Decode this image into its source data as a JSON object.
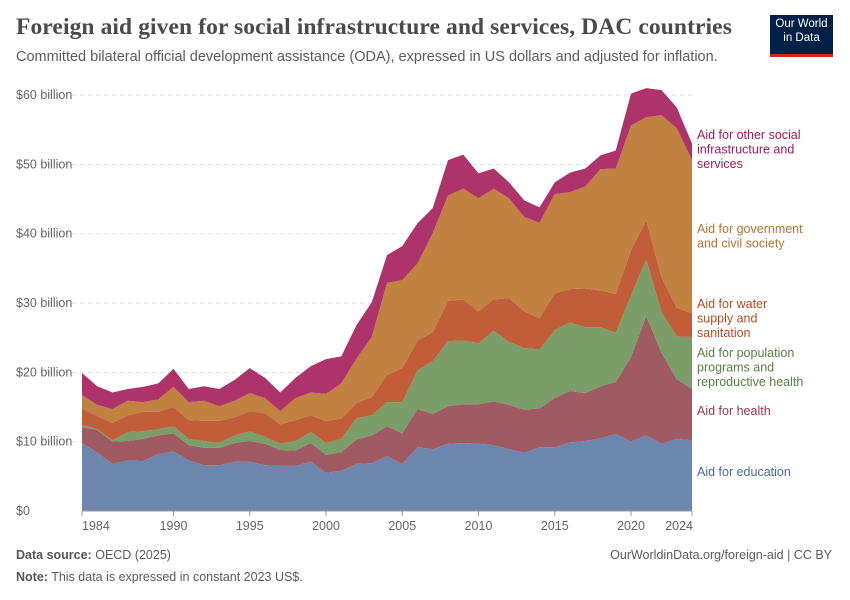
{
  "header": {
    "title": "Foreign aid given for social infrastructure and services, DAC countries",
    "subtitle": "Committed bilateral official development assistance (ODA), expressed in US dollars and adjusted for inflation.",
    "logo_line1": "Our World",
    "logo_line2": "in Data"
  },
  "footer": {
    "source_label": "Data source:",
    "source": "OECD (2025)",
    "note_label": "Note:",
    "note": "This data is expressed in constant 2023 US$.",
    "url": "OurWorldinData.org/foreign-aid | CC BY"
  },
  "chart_data": {
    "type": "area",
    "stacked": true,
    "title": "Foreign aid given for social infrastructure and services, DAC countries",
    "xlim": [
      1984,
      2024
    ],
    "ylim": [
      0,
      60
    ],
    "grid": "horizontal dashed",
    "legend": "right, labels at series end",
    "x_ticks": [
      "1984",
      "1990",
      "1995",
      "2000",
      "2005",
      "2010",
      "2015",
      "2020",
      "2024"
    ],
    "y_ticks": [
      "$0",
      "$10 billion",
      "$20 billion",
      "$30 billion",
      "$40 billion",
      "$50 billion",
      "$60 billion"
    ],
    "units": "billion constant 2023 US$",
    "x": [
      1984,
      1985,
      1986,
      1987,
      1988,
      1989,
      1990,
      1991,
      1992,
      1993,
      1994,
      1995,
      1996,
      1997,
      1998,
      1999,
      2000,
      2001,
      2002,
      2003,
      2004,
      2005,
      2006,
      2007,
      2008,
      2009,
      2010,
      2011,
      2012,
      2013,
      2014,
      2015,
      2016,
      2017,
      2018,
      2019,
      2020,
      2021,
      2022,
      2023,
      2024
    ],
    "series": [
      {
        "name": "Aid for education",
        "color": "#6d86ae",
        "label_color": "#4c6a9c",
        "values": [
          9.8,
          8.4,
          6.8,
          7.3,
          7.2,
          8.2,
          8.6,
          7.3,
          6.6,
          6.6,
          7.1,
          7.1,
          6.6,
          6.5,
          6.5,
          7.1,
          5.5,
          5.8,
          6.8,
          6.9,
          7.9,
          6.8,
          9.2,
          8.9,
          9.7,
          9.8,
          9.7,
          9.5,
          8.9,
          8.4,
          9.2,
          9.2,
          9.9,
          10.1,
          10.5,
          11.1,
          10.0,
          10.9,
          9.7,
          10.4,
          10.2
        ]
      },
      {
        "name": "Aid for health",
        "color": "#a05a62",
        "label_color": "#9a3a47",
        "values": [
          2.3,
          3.3,
          3.2,
          2.8,
          3.2,
          2.7,
          2.6,
          2.2,
          2.5,
          2.5,
          2.7,
          3.0,
          3.1,
          2.3,
          2.2,
          2.7,
          2.6,
          2.7,
          3.5,
          4.0,
          4.3,
          4.4,
          5.5,
          5.1,
          5.4,
          5.6,
          5.7,
          6.3,
          6.4,
          6.2,
          5.6,
          7.1,
          7.4,
          6.9,
          7.5,
          7.5,
          12.2,
          17.2,
          13.1,
          8.6,
          7.4
        ]
      },
      {
        "name": "Aid for population programs and reproductive health",
        "color": "#7a9d6a",
        "label_color": "#578145",
        "values": [
          0.3,
          0.1,
          0.2,
          1.3,
          1.1,
          0.9,
          1.0,
          0.9,
          1.0,
          0.7,
          1.1,
          1.4,
          1.0,
          0.9,
          1.4,
          1.6,
          1.7,
          1.9,
          3.1,
          2.9,
          3.5,
          4.5,
          5.6,
          7.6,
          9.4,
          9.2,
          8.8,
          10.2,
          9.1,
          8.9,
          8.5,
          9.8,
          9.9,
          9.5,
          8.5,
          7.1,
          8.9,
          8.2,
          5.9,
          6.2,
          7.5
        ]
      },
      {
        "name": "Aid for water supply and sanitation",
        "color": "#c15d39",
        "label_color": "#bb4a1e",
        "values": [
          2.4,
          1.9,
          2.5,
          2.4,
          2.8,
          2.5,
          2.8,
          2.7,
          2.9,
          3.2,
          2.6,
          2.9,
          3.4,
          2.8,
          3.0,
          2.4,
          3.2,
          2.9,
          2.2,
          2.6,
          3.9,
          4.9,
          4.3,
          4.2,
          5.8,
          5.9,
          4.6,
          4.5,
          6.3,
          5.3,
          4.5,
          5.3,
          4.8,
          5.6,
          5.3,
          5.6,
          6.5,
          5.6,
          5.0,
          4.1,
          3.4
        ]
      },
      {
        "name": "Aid for government and civil society",
        "color": "#c08141",
        "label_color": "#b8732c",
        "values": [
          1.9,
          1.6,
          2.0,
          2.1,
          1.4,
          1.8,
          2.9,
          2.6,
          2.9,
          2.1,
          2.4,
          2.6,
          2.2,
          1.9,
          3.2,
          3.3,
          3.9,
          5.1,
          6.4,
          8.7,
          13.3,
          12.7,
          11.1,
          14.3,
          15.2,
          16.0,
          16.3,
          16.0,
          14.4,
          13.6,
          13.8,
          14.3,
          14.0,
          14.7,
          17.5,
          18.1,
          18.0,
          14.9,
          23.4,
          25.9,
          22.1
        ]
      },
      {
        "name": "Aid for other social infrastructure and services",
        "color": "#ad336a",
        "label_color": "#a0195a",
        "values": [
          3.2,
          2.7,
          2.4,
          1.7,
          2.2,
          2.3,
          2.6,
          1.9,
          2.1,
          2.5,
          3.0,
          3.6,
          2.9,
          2.7,
          2.9,
          3.8,
          5.0,
          3.9,
          4.8,
          5.0,
          4.0,
          4.9,
          5.8,
          3.6,
          5.1,
          4.9,
          3.6,
          2.9,
          2.3,
          2.4,
          2.2,
          1.7,
          2.8,
          2.6,
          2.0,
          2.6,
          4.6,
          4.2,
          3.6,
          3.0,
          2.4
        ]
      }
    ],
    "labels_wrapped": [
      [
        "Aid for education"
      ],
      [
        "Aid for health"
      ],
      [
        "Aid for population",
        "programs and",
        "reproductive health"
      ],
      [
        "Aid for water",
        "supply and",
        "sanitation"
      ],
      [
        "Aid for government",
        "and civil society"
      ],
      [
        "Aid for other social",
        "infrastructure and",
        "services"
      ]
    ]
  }
}
